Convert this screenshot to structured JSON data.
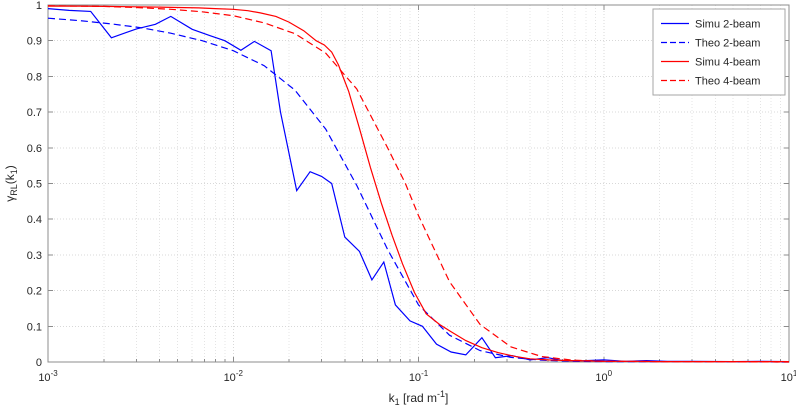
{
  "figure": {
    "background": "#ffffff",
    "plot_box_color": "#8c8c8c",
    "grid_color": "#d8d8d8",
    "minor_grid_color": "#e4e4e4",
    "text_color": "#262626",
    "legend_border_color": "#a6a6a6"
  },
  "chart_data": {
    "type": "line",
    "x_scale": "log",
    "x_range": [
      0.001,
      10
    ],
    "y_range": [
      0,
      1
    ],
    "x_major_tick_exponents": [
      -3,
      -2,
      -1,
      0,
      1
    ],
    "y_ticks": [
      0,
      0.1,
      0.2,
      0.3,
      0.4,
      0.5,
      0.6,
      0.7,
      0.8,
      0.9,
      1
    ],
    "grid": "on",
    "minor_grid": "on",
    "xlabel_parts": [
      {
        "t": "k"
      },
      {
        "t": "1",
        "sub": true
      },
      {
        "t": " [rad m"
      },
      {
        "t": "-1",
        "sup": true
      },
      {
        "t": "]"
      }
    ],
    "ylabel_parts": [
      {
        "t": "γ"
      },
      {
        "t": "RL",
        "sub": true
      },
      {
        "t": "(k"
      },
      {
        "t": "1",
        "sub": true
      },
      {
        "t": ")"
      }
    ],
    "legend": {
      "position": "top-right",
      "entries": [
        "Simu 2-beam",
        "Theo 2-beam",
        "Simu 4-beam",
        "Theo 4-beam"
      ]
    },
    "series": [
      {
        "name": "Simu 2-beam",
        "color": "#0000ff",
        "style": "solid",
        "points": [
          [
            0.001,
            0.99
          ],
          [
            0.0013,
            0.985
          ],
          [
            0.0017,
            0.982
          ],
          [
            0.0022,
            0.908
          ],
          [
            0.003,
            0.933
          ],
          [
            0.0038,
            0.946
          ],
          [
            0.0046,
            0.968
          ],
          [
            0.006,
            0.932
          ],
          [
            0.0075,
            0.914
          ],
          [
            0.009,
            0.9
          ],
          [
            0.011,
            0.873
          ],
          [
            0.013,
            0.898
          ],
          [
            0.016,
            0.872
          ],
          [
            0.018,
            0.7
          ],
          [
            0.022,
            0.48
          ],
          [
            0.026,
            0.533
          ],
          [
            0.03,
            0.52
          ],
          [
            0.034,
            0.5
          ],
          [
            0.04,
            0.35
          ],
          [
            0.048,
            0.31
          ],
          [
            0.056,
            0.23
          ],
          [
            0.065,
            0.28
          ],
          [
            0.075,
            0.16
          ],
          [
            0.09,
            0.115
          ],
          [
            0.105,
            0.1
          ],
          [
            0.125,
            0.05
          ],
          [
            0.15,
            0.028
          ],
          [
            0.18,
            0.02
          ],
          [
            0.22,
            0.068
          ],
          [
            0.26,
            0.012
          ],
          [
            0.32,
            0.018
          ],
          [
            0.4,
            0.006
          ],
          [
            0.5,
            0.012
          ],
          [
            0.6,
            0.004
          ],
          [
            0.75,
            0.003
          ],
          [
            1,
            0.006
          ],
          [
            1.3,
            0.002
          ],
          [
            1.7,
            0.004
          ],
          [
            2.2,
            0.002
          ],
          [
            3,
            0.002
          ],
          [
            5,
            0.001
          ],
          [
            7,
            0.002
          ],
          [
            10,
            0.001
          ]
        ]
      },
      {
        "name": "Theo 2-beam",
        "color": "#0000ff",
        "style": "dashed",
        "points": [
          [
            0.001,
            0.963
          ],
          [
            0.0015,
            0.956
          ],
          [
            0.0022,
            0.947
          ],
          [
            0.0032,
            0.936
          ],
          [
            0.0046,
            0.921
          ],
          [
            0.0068,
            0.9
          ],
          [
            0.01,
            0.872
          ],
          [
            0.0147,
            0.83
          ],
          [
            0.0215,
            0.762
          ],
          [
            0.0316,
            0.652
          ],
          [
            0.0464,
            0.495
          ],
          [
            0.0681,
            0.315
          ],
          [
            0.1,
            0.16
          ],
          [
            0.147,
            0.075
          ],
          [
            0.215,
            0.032
          ],
          [
            0.316,
            0.013
          ],
          [
            0.464,
            0.005
          ],
          [
            0.681,
            0.002
          ],
          [
            1,
            0.001
          ],
          [
            2,
            0.001
          ],
          [
            10,
            0
          ]
        ]
      },
      {
        "name": "Simu 4-beam",
        "color": "#ff0000",
        "style": "solid",
        "points": [
          [
            0.001,
            0.997
          ],
          [
            0.0015,
            0.997
          ],
          [
            0.002,
            0.996
          ],
          [
            0.003,
            0.995
          ],
          [
            0.004,
            0.994
          ],
          [
            0.005,
            0.993
          ],
          [
            0.0065,
            0.992
          ],
          [
            0.008,
            0.99
          ],
          [
            0.01,
            0.988
          ],
          [
            0.012,
            0.984
          ],
          [
            0.014,
            0.978
          ],
          [
            0.017,
            0.968
          ],
          [
            0.02,
            0.952
          ],
          [
            0.024,
            0.928
          ],
          [
            0.028,
            0.9
          ],
          [
            0.031,
            0.888
          ],
          [
            0.034,
            0.868
          ],
          [
            0.037,
            0.832
          ],
          [
            0.042,
            0.758
          ],
          [
            0.048,
            0.655
          ],
          [
            0.055,
            0.545
          ],
          [
            0.063,
            0.445
          ],
          [
            0.072,
            0.355
          ],
          [
            0.082,
            0.275
          ],
          [
            0.095,
            0.195
          ],
          [
            0.11,
            0.135
          ],
          [
            0.13,
            0.105
          ],
          [
            0.15,
            0.085
          ],
          [
            0.18,
            0.06
          ],
          [
            0.22,
            0.04
          ],
          [
            0.27,
            0.026
          ],
          [
            0.33,
            0.016
          ],
          [
            0.4,
            0.009
          ],
          [
            0.5,
            0.006
          ],
          [
            0.65,
            0.004
          ],
          [
            0.8,
            0.003
          ],
          [
            1,
            0.002
          ],
          [
            1.5,
            0.002
          ],
          [
            2,
            0.001
          ],
          [
            3,
            0.001
          ],
          [
            5,
            0.001
          ],
          [
            10,
            0.001
          ]
        ]
      },
      {
        "name": "Theo 4-beam",
        "color": "#ff0000",
        "style": "dashed",
        "points": [
          [
            0.001,
            0.998
          ],
          [
            0.002,
            0.996
          ],
          [
            0.003,
            0.993
          ],
          [
            0.0046,
            0.988
          ],
          [
            0.0068,
            0.981
          ],
          [
            0.01,
            0.97
          ],
          [
            0.0147,
            0.95
          ],
          [
            0.0215,
            0.92
          ],
          [
            0.0316,
            0.865
          ],
          [
            0.0464,
            0.765
          ],
          [
            0.0681,
            0.6
          ],
          [
            0.085,
            0.5
          ],
          [
            0.1,
            0.41
          ],
          [
            0.147,
            0.225
          ],
          [
            0.215,
            0.105
          ],
          [
            0.316,
            0.042
          ],
          [
            0.464,
            0.015
          ],
          [
            0.681,
            0.005
          ],
          [
            1,
            0.002
          ],
          [
            2,
            0.001
          ],
          [
            10,
            0
          ]
        ]
      }
    ]
  }
}
